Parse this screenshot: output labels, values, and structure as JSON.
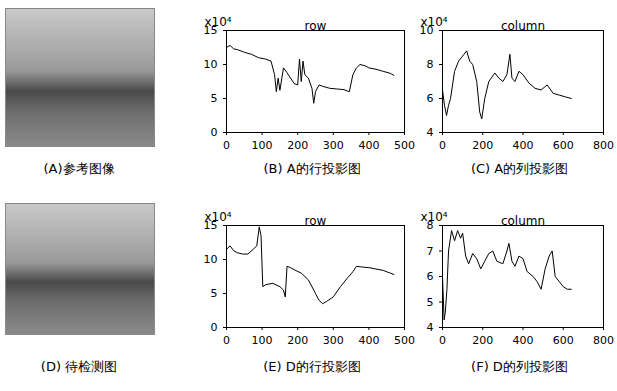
{
  "images": [
    {
      "caption": "(A)参考图像"
    },
    {
      "caption": "(D) 待检测图"
    }
  ],
  "chart_data": [
    {
      "type": "line",
      "title": "row",
      "ylabel": "x10⁴",
      "caption": "(B) A的行投影图",
      "xlim": [
        0,
        500
      ],
      "xticks": [
        0,
        100,
        200,
        300,
        400,
        500
      ],
      "ylim": [
        0,
        15
      ],
      "yticks": [
        0,
        5,
        10,
        15
      ],
      "color": "#000000",
      "x": [
        0,
        10,
        20,
        30,
        50,
        70,
        90,
        110,
        125,
        135,
        140,
        145,
        150,
        160,
        170,
        180,
        190,
        200,
        205,
        210,
        215,
        220,
        230,
        240,
        245,
        250,
        260,
        270,
        290,
        310,
        330,
        345,
        355,
        365,
        375,
        390,
        400,
        420,
        440,
        460,
        470
      ],
      "values": [
        12.5,
        12.8,
        12.3,
        12.2,
        11.8,
        11.5,
        11.0,
        10.8,
        10.5,
        8.5,
        6.0,
        8.0,
        6.2,
        9.5,
        8.8,
        8.0,
        7.2,
        7.0,
        10.8,
        7.5,
        10.5,
        8.5,
        8.0,
        6.5,
        4.3,
        6.0,
        7.0,
        6.8,
        6.5,
        6.4,
        6.3,
        6.0,
        8.5,
        9.5,
        10.0,
        9.8,
        9.5,
        9.3,
        9.0,
        8.7,
        8.4
      ]
    },
    {
      "type": "line",
      "title": "column",
      "ylabel": "x10⁴",
      "caption": "(C) A的列投影图",
      "xlim": [
        0,
        800
      ],
      "xticks": [
        0,
        200,
        400,
        600,
        800
      ],
      "ylim": [
        4,
        10
      ],
      "yticks": [
        4,
        6,
        8,
        10
      ],
      "color": "#000000",
      "x": [
        0,
        10,
        20,
        30,
        40,
        60,
        80,
        100,
        120,
        135,
        150,
        170,
        185,
        195,
        210,
        230,
        260,
        280,
        300,
        320,
        335,
        345,
        360,
        380,
        400,
        430,
        460,
        490,
        520,
        550,
        580,
        610,
        640
      ],
      "values": [
        6.5,
        5.6,
        5.0,
        5.6,
        6.0,
        7.6,
        8.2,
        8.5,
        8.8,
        8.2,
        8.0,
        7.0,
        5.2,
        4.8,
        6.0,
        7.0,
        7.5,
        7.2,
        7.0,
        7.4,
        8.6,
        7.2,
        7.0,
        7.6,
        7.4,
        6.9,
        6.6,
        6.5,
        6.8,
        6.3,
        6.2,
        6.1,
        6.0
      ]
    },
    {
      "type": "line",
      "title": "row",
      "ylabel": "x10⁴",
      "caption": "(E) D的行投影图",
      "xlim": [
        0,
        500
      ],
      "xticks": [
        0,
        100,
        200,
        300,
        400,
        500
      ],
      "ylim": [
        0,
        15
      ],
      "yticks": [
        0,
        5,
        10,
        15
      ],
      "color": "#000000",
      "x": [
        0,
        10,
        20,
        30,
        45,
        60,
        75,
        85,
        92,
        97,
        102,
        110,
        130,
        150,
        160,
        165,
        170,
        180,
        190,
        210,
        230,
        250,
        260,
        270,
        280,
        300,
        320,
        340,
        355,
        365,
        380,
        400,
        420,
        440,
        460,
        470
      ],
      "values": [
        11.5,
        12.0,
        11.3,
        11.0,
        10.8,
        10.8,
        11.5,
        12.0,
        14.8,
        13.5,
        6.0,
        6.3,
        6.5,
        6.0,
        5.5,
        4.5,
        9.0,
        8.8,
        8.5,
        8.0,
        7.0,
        5.0,
        4.0,
        3.5,
        3.8,
        4.5,
        6.0,
        7.3,
        8.2,
        9.0,
        8.9,
        8.8,
        8.6,
        8.4,
        8.0,
        7.8
      ]
    },
    {
      "type": "line",
      "title": "column",
      "ylabel": "x10⁴",
      "caption": "(F) D的列投影图",
      "xlim": [
        0,
        800
      ],
      "xticks": [
        0,
        200,
        400,
        600,
        800
      ],
      "ylim": [
        4,
        8
      ],
      "yticks": [
        4,
        5,
        6,
        7,
        8
      ],
      "color": "#000000",
      "x": [
        0,
        8,
        14,
        22,
        30,
        45,
        60,
        75,
        90,
        100,
        115,
        130,
        150,
        170,
        190,
        210,
        230,
        250,
        270,
        300,
        320,
        330,
        345,
        360,
        380,
        400,
        420,
        450,
        470,
        490,
        510,
        530,
        545,
        560,
        580,
        600,
        620,
        640
      ],
      "values": [
        6.0,
        4.3,
        4.6,
        5.5,
        7.0,
        7.8,
        7.4,
        7.8,
        7.5,
        7.7,
        6.8,
        6.5,
        6.9,
        6.7,
        6.3,
        6.6,
        6.9,
        7.0,
        6.6,
        6.5,
        7.0,
        7.3,
        6.6,
        6.4,
        6.8,
        6.7,
        6.2,
        6.0,
        5.8,
        5.5,
        6.3,
        6.8,
        7.0,
        6.0,
        5.8,
        5.6,
        5.5,
        5.5
      ]
    }
  ]
}
